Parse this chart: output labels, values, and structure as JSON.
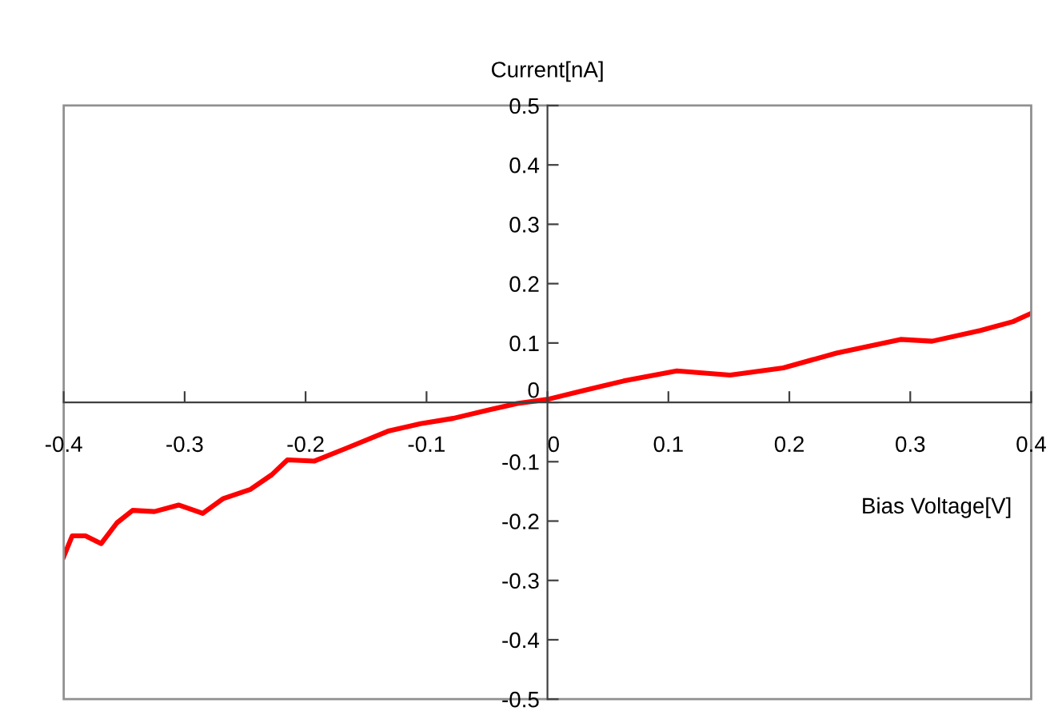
{
  "chart_data": {
    "type": "line",
    "xlabel": "Bias Voltage[V]",
    "ylabel": "Current[nA]",
    "xlim": [
      -0.4,
      0.4
    ],
    "ylim": [
      -0.5,
      0.5
    ],
    "xticks": [
      -0.4,
      -0.3,
      -0.2,
      -0.1,
      0,
      0.1,
      0.2,
      0.3,
      0.4
    ],
    "yticks": [
      -0.5,
      -0.4,
      -0.3,
      -0.2,
      -0.1,
      0,
      0.1,
      0.2,
      0.3,
      0.4,
      0.5
    ],
    "grid": false,
    "marker": "none",
    "line_style": "solid",
    "series": [
      {
        "color": "#ff0000",
        "x": [
          -0.4,
          -0.393,
          -0.382,
          -0.369,
          -0.356,
          -0.343,
          -0.325,
          -0.305,
          -0.285,
          -0.268,
          -0.246,
          -0.228,
          -0.215,
          -0.193,
          -0.166,
          -0.131,
          -0.105,
          -0.078,
          -0.047,
          -0.025,
          0.0,
          0.028,
          0.063,
          0.107,
          0.151,
          0.195,
          0.239,
          0.292,
          0.318,
          0.358,
          0.385,
          0.4
        ],
        "values": [
          -0.26,
          -0.225,
          -0.225,
          -0.238,
          -0.203,
          -0.182,
          -0.184,
          -0.173,
          -0.187,
          -0.162,
          -0.147,
          -0.122,
          -0.097,
          -0.099,
          -0.077,
          -0.048,
          -0.036,
          -0.027,
          -0.012,
          -0.002,
          0.005,
          0.019,
          0.036,
          0.053,
          0.046,
          0.058,
          0.083,
          0.106,
          0.103,
          0.121,
          0.136,
          0.15
        ]
      }
    ]
  }
}
